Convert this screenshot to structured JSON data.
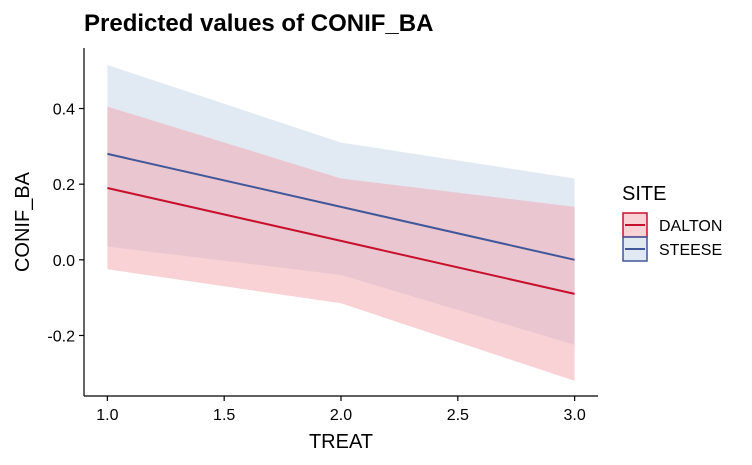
{
  "chart_data": {
    "type": "line",
    "title": "Predicted values of CONIF_BA",
    "xlabel": "TREAT",
    "ylabel": "CONIF_BA",
    "x": [
      1.0,
      2.0,
      3.0
    ],
    "xlim": [
      0.9,
      3.1
    ],
    "ylim": [
      -0.36,
      0.56
    ],
    "xticks": [
      1.0,
      1.5,
      2.0,
      2.5,
      3.0
    ],
    "xtick_labels": [
      "1.0",
      "1.5",
      "2.0",
      "2.5",
      "3.0"
    ],
    "yticks": [
      -0.2,
      0.0,
      0.2,
      0.4
    ],
    "ytick_labels": [
      "-0.2",
      "0.0",
      "0.2",
      "0.4"
    ],
    "grid": false,
    "legend_title": "SITE",
    "legend_position": "right",
    "series": [
      {
        "name": "DALTON",
        "color": "#C8102E",
        "band_color": "#F4A6AE",
        "values": [
          0.19,
          0.05,
          -0.09
        ],
        "lower": [
          -0.025,
          -0.115,
          -0.32
        ],
        "upper": [
          0.405,
          0.215,
          0.14
        ]
      },
      {
        "name": "STEESE",
        "color": "#41579A",
        "band_color": "#C3D3E6",
        "values": [
          0.28,
          0.14,
          0.0
        ],
        "lower": [
          0.035,
          -0.04,
          -0.225
        ],
        "upper": [
          0.515,
          0.31,
          0.215
        ]
      }
    ]
  }
}
